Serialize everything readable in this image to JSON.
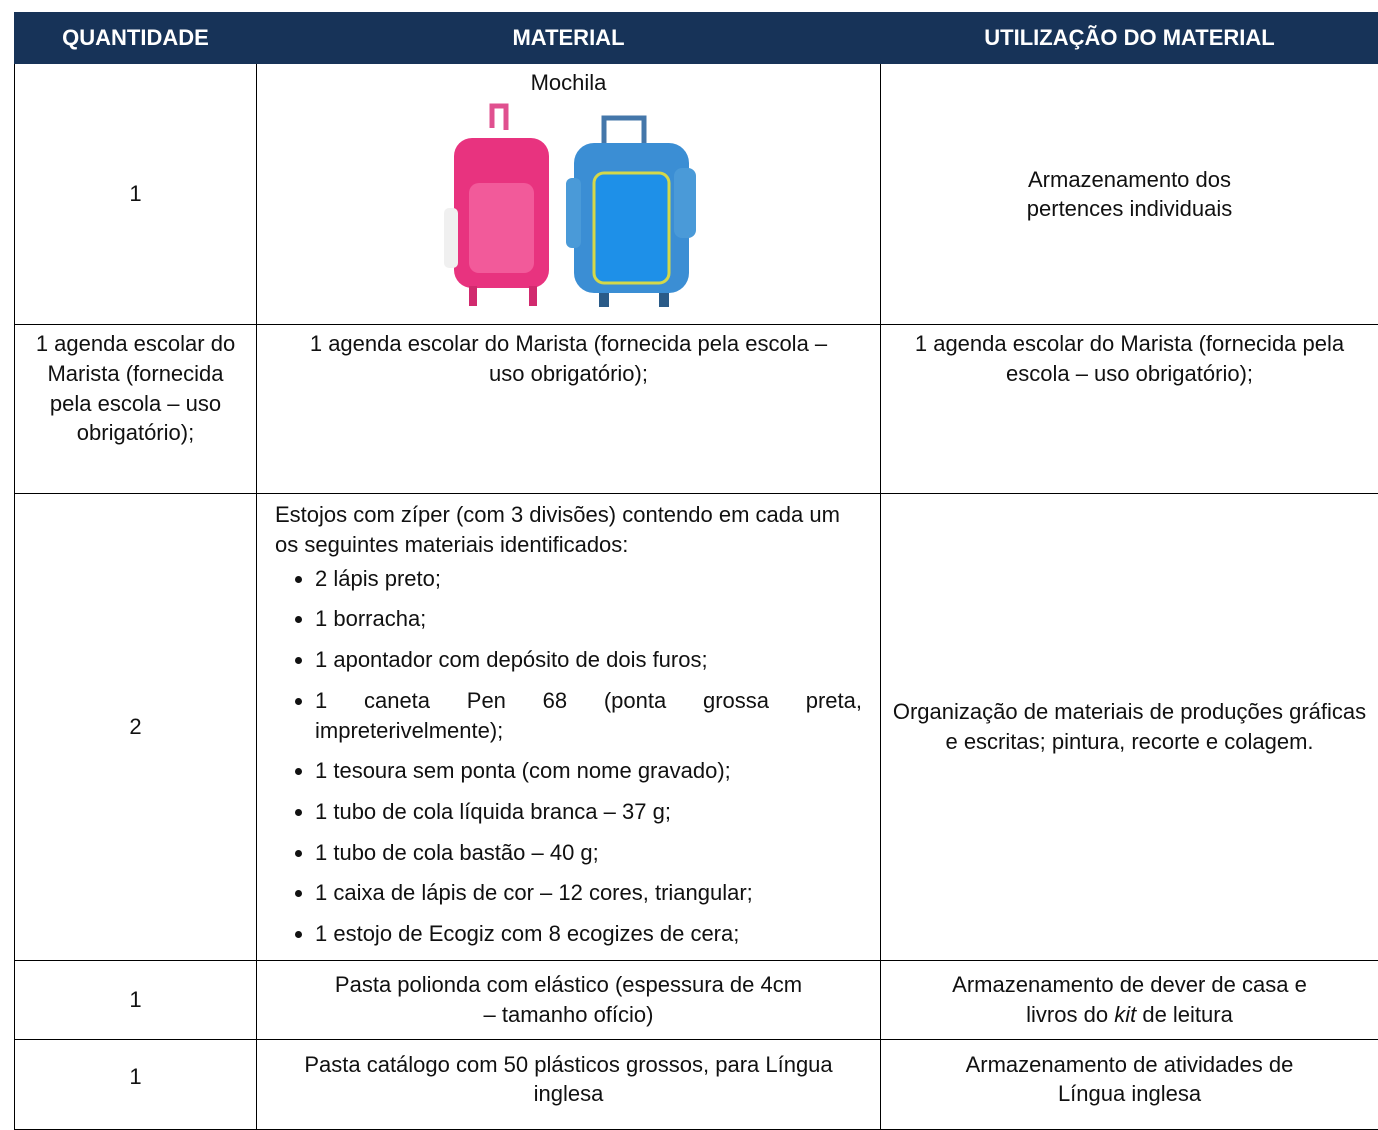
{
  "table": {
    "headers": [
      "QUANTIDADE",
      "MATERIAL",
      "UTILIZAÇÃO DO MATERIAL"
    ],
    "rows": [
      {
        "quantity": "1",
        "material": "Mochila",
        "usage": "Armazenamento dos pertences individuais"
      },
      {
        "quantity": "1 agenda escolar do Marista (fornecida pela escola – uso obrigatório);",
        "material": "1 agenda escolar do Marista (fornecida pela escola – uso obrigatório);",
        "usage": "1 agenda escolar do Marista (fornecida pela escola – uso obrigatório);"
      },
      {
        "quantity": "2",
        "material": "Estojos com zíper (com 3 divisões) contendo em cada um os seguintes materiais identificados:",
        "items": [
          "2 lápis preto;",
          "1 borracha;",
          "1 apontador com depósito de dois furos;",
          "1 caneta Pen 68 (ponta grossa preta, impreterivelmente);",
          "1 tesoura sem ponta (com nome gravado);",
          "1 tubo de cola líquida branca – 37 g;",
          "1 tubo de cola bastão – 40 g;",
          "1 caixa de lápis de cor – 12 cores, triangular;",
          "1 estojo de Ecogiz com 8 ecogizes de cera;"
        ],
        "usage": "Organização de materiais de produções gráficas e escritas; pintura, recorte e colagem."
      },
      {
        "quantity": "1",
        "material": "Pasta polionda com elástico (espessura de 4cm – tamanho ofício)",
        "usage_parts": [
          "Armazenamento de dever de casa e livros do",
          "kit",
          "de leitura"
        ]
      },
      {
        "quantity": "1",
        "material": "Pasta catálogo com 50 plásticos grossos, para Língua inglesa",
        "usage": "Armazenamento de atividades de Língua inglesa"
      }
    ]
  }
}
